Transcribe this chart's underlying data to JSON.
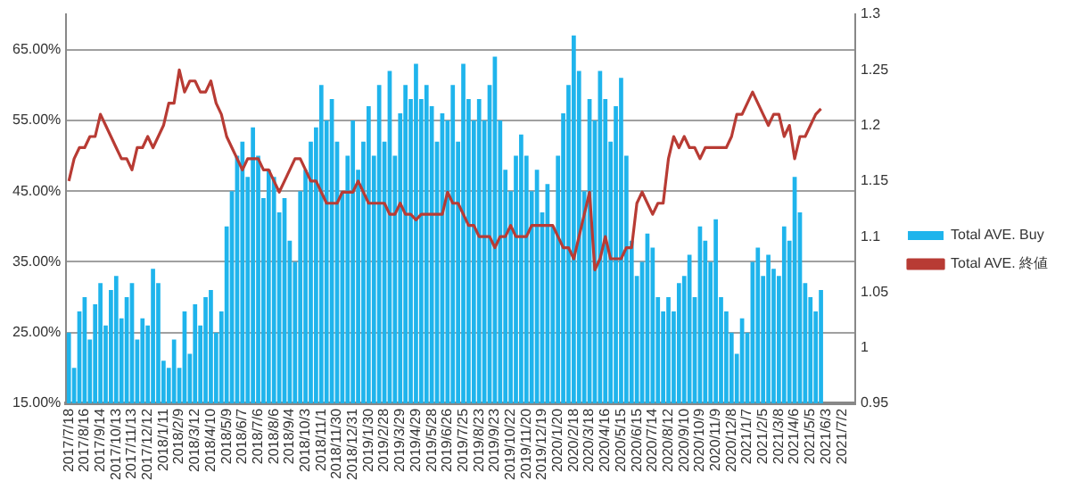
{
  "chart_data": {
    "type": "bar",
    "categories": [
      "2017/7/18",
      null,
      null,
      "2017/8/16",
      null,
      null,
      "2017/9/14",
      null,
      null,
      "2017/10/13",
      null,
      null,
      "2017/11/13",
      null,
      null,
      "2017/12/12",
      null,
      null,
      "2018/1/11",
      null,
      null,
      "2018/2/9",
      null,
      null,
      "2018/3/12",
      null,
      null,
      "2018/4/10",
      null,
      null,
      "2018/5/9",
      null,
      null,
      "2018/6/7",
      null,
      null,
      "2018/7/6",
      null,
      null,
      "2018/8/6",
      null,
      null,
      "2018/9/4",
      null,
      null,
      "2018/10/3",
      null,
      null,
      "2018/11/1",
      null,
      null,
      "2018/11/30",
      null,
      null,
      "2018/12/31",
      null,
      null,
      "2019/1/30",
      null,
      null,
      "2019/2/28",
      null,
      null,
      "2019/3/29",
      null,
      null,
      "2019/4/29",
      null,
      null,
      "2019/5/28",
      null,
      null,
      "2019/6/26",
      null,
      null,
      "2019/7/25",
      null,
      null,
      "2019/8/23",
      null,
      null,
      "2019/9/23",
      null,
      null,
      "2019/10/22",
      null,
      null,
      "2019/11/20",
      null,
      null,
      "2019/12/19",
      null,
      null,
      "2020/1/20",
      null,
      null,
      "2020/2/18",
      null,
      null,
      "2020/3/18",
      null,
      null,
      "2020/4/16",
      null,
      null,
      "2020/5/15",
      null,
      null,
      "2020/6/15",
      null,
      null,
      "2020/7/14",
      null,
      null,
      "2020/8/12",
      null,
      null,
      "2020/9/10",
      null,
      null,
      "2020/10/9",
      null,
      null,
      "2020/11/9",
      null,
      null,
      "2020/12/8",
      null,
      null,
      "2021/1/7",
      null,
      null,
      "2021/2/5",
      null,
      null,
      "2021/3/8",
      null,
      null,
      "2021/4/6",
      null,
      null,
      "2021/5/5",
      null,
      null,
      "2021/6/3",
      null,
      null,
      "2021/7/2",
      null,
      null
    ],
    "series": [
      {
        "name": "Total AVE. Buy",
        "color": "#1fb4ec",
        "values": [
          25,
          20,
          28,
          30,
          24,
          29,
          32,
          26,
          31,
          33,
          27,
          30,
          32,
          24,
          27,
          26,
          34,
          32,
          21,
          20,
          24,
          20,
          28,
          22,
          29,
          26,
          30,
          31,
          25,
          28,
          40,
          45,
          50,
          52,
          47,
          54,
          50,
          44,
          48,
          47,
          42,
          44,
          38,
          35,
          45,
          48,
          52,
          54,
          60,
          55,
          58,
          52,
          45,
          50,
          55,
          48,
          52,
          57,
          50,
          60,
          52,
          62,
          50,
          56,
          60,
          58,
          63,
          58,
          60,
          57,
          52,
          56,
          55,
          60,
          52,
          63,
          58,
          55,
          58,
          55,
          60,
          64,
          55,
          48,
          45,
          50,
          53,
          50,
          45,
          48,
          42,
          46,
          40,
          50,
          56,
          60,
          67,
          62,
          45,
          58,
          55,
          62,
          58,
          52,
          57,
          61,
          50,
          38,
          33,
          35,
          39,
          37,
          30,
          28,
          30,
          28,
          32,
          33,
          36,
          30,
          40,
          38,
          35,
          41,
          30,
          28,
          25,
          22,
          27,
          25,
          35,
          37,
          33,
          36,
          34,
          33,
          40,
          38,
          47,
          42,
          32,
          30,
          28,
          31,
          null,
          null,
          null,
          null,
          null,
          null
        ]
      },
      {
        "name": "Total AVE. 終値",
        "type": "line",
        "axis": "y2",
        "color": "#b83b34",
        "values": [
          1.15,
          1.17,
          1.18,
          1.18,
          1.19,
          1.19,
          1.21,
          1.2,
          1.19,
          1.18,
          1.17,
          1.17,
          1.16,
          1.18,
          1.18,
          1.19,
          1.18,
          1.19,
          1.2,
          1.22,
          1.22,
          1.25,
          1.23,
          1.24,
          1.24,
          1.23,
          1.23,
          1.24,
          1.22,
          1.21,
          1.19,
          1.18,
          1.17,
          1.16,
          1.17,
          1.17,
          1.17,
          1.16,
          1.16,
          1.15,
          1.14,
          1.15,
          1.16,
          1.17,
          1.17,
          1.16,
          1.15,
          1.15,
          1.14,
          1.13,
          1.13,
          1.13,
          1.14,
          1.14,
          1.14,
          1.15,
          1.14,
          1.13,
          1.13,
          1.13,
          1.13,
          1.12,
          1.12,
          1.13,
          1.12,
          1.12,
          1.115,
          1.12,
          1.12,
          1.12,
          1.12,
          1.12,
          1.14,
          1.13,
          1.13,
          1.12,
          1.11,
          1.11,
          1.1,
          1.1,
          1.1,
          1.09,
          1.1,
          1.1,
          1.11,
          1.1,
          1.1,
          1.1,
          1.11,
          1.11,
          1.11,
          1.11,
          1.11,
          1.1,
          1.09,
          1.09,
          1.08,
          1.1,
          1.12,
          1.14,
          1.07,
          1.08,
          1.1,
          1.08,
          1.08,
          1.08,
          1.09,
          1.09,
          1.13,
          1.14,
          1.13,
          1.12,
          1.13,
          1.13,
          1.17,
          1.19,
          1.18,
          1.19,
          1.18,
          1.18,
          1.17,
          1.18,
          1.18,
          1.18,
          1.18,
          1.18,
          1.19,
          1.21,
          1.21,
          1.22,
          1.23,
          1.22,
          1.21,
          1.2,
          1.21,
          1.21,
          1.19,
          1.2,
          1.17,
          1.19,
          1.19,
          1.2,
          1.21,
          1.215,
          null,
          null,
          null,
          null,
          null,
          null
        ]
      }
    ],
    "ylim": [
      15,
      70
    ],
    "yticks": [
      {
        "value": 15,
        "label": "15.00%"
      },
      {
        "value": 25,
        "label": "25.00%"
      },
      {
        "value": 35,
        "label": "35.00%"
      },
      {
        "value": 45,
        "label": "45.00%"
      },
      {
        "value": 55,
        "label": "55.00%"
      },
      {
        "value": 65,
        "label": "65.00%"
      }
    ],
    "y2lim": [
      0.95,
      1.3
    ],
    "y2ticks": [
      0.95,
      1,
      1.05,
      1.1,
      1.15,
      1.2,
      1.25,
      1.3
    ],
    "grid": "y",
    "legend": "right"
  }
}
